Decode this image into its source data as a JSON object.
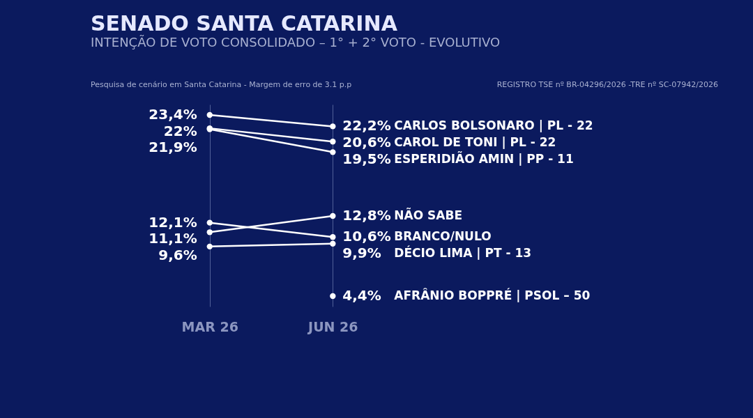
{
  "chart_data": {
    "type": "line",
    "title": "SENADO SANTA CATARINA",
    "subtitle": "INTENÇÃO DE VOTO CONSOLIDADO – 1° + 2° VOTO - EVOLUTIVO",
    "categories": [
      "MAR 26",
      "JUN 26"
    ],
    "series": [
      {
        "name": "CARLOS BOLSONARO | PL - 22",
        "color": "#ffffff",
        "values": [
          23.4,
          22.2
        ],
        "value_labels": [
          "23,4%",
          "22,2%"
        ]
      },
      {
        "name": "CAROL DE TONI | PL - 22",
        "color": "#ffffff",
        "values": [
          22,
          20.6
        ],
        "value_labels": [
          "22%",
          "20,6%"
        ]
      },
      {
        "name": "ESPERIDIÃO AMIN | PP - 11",
        "color": "#ffffff",
        "values": [
          21.9,
          19.5
        ],
        "value_labels": [
          "21,9%",
          "19,5%"
        ]
      },
      {
        "name": "NÃO SABE",
        "color": "#ffffff",
        "values": [
          11.1,
          12.8
        ],
        "value_labels": [
          "11,1%",
          "12,8%"
        ]
      },
      {
        "name": "BRANCO/NULO",
        "color": "#ffffff",
        "values": [
          12.1,
          10.6
        ],
        "value_labels": [
          "12,1%",
          "10,6%"
        ]
      },
      {
        "name": "DÉCIO LIMA | PT - 13",
        "color": "#ffffff",
        "values": [
          9.6,
          9.9
        ],
        "value_labels": [
          "9,6%",
          "9,9%"
        ]
      },
      {
        "name": "AFRÂNIO BOPPRÉ | PSOL – 50",
        "color": "#ffffff",
        "values": [
          null,
          4.4
        ],
        "value_labels": [
          null,
          "4,4%"
        ]
      }
    ],
    "marker": "circle",
    "grid": "x",
    "annotations": [
      "Pesquisa de cenário em Santa Catarina - Margem de erro de 3.1 p.p",
      "REGISTRO TSE nº BR-04296/2026 -TRE nº SC-07942/2026"
    ]
  }
}
